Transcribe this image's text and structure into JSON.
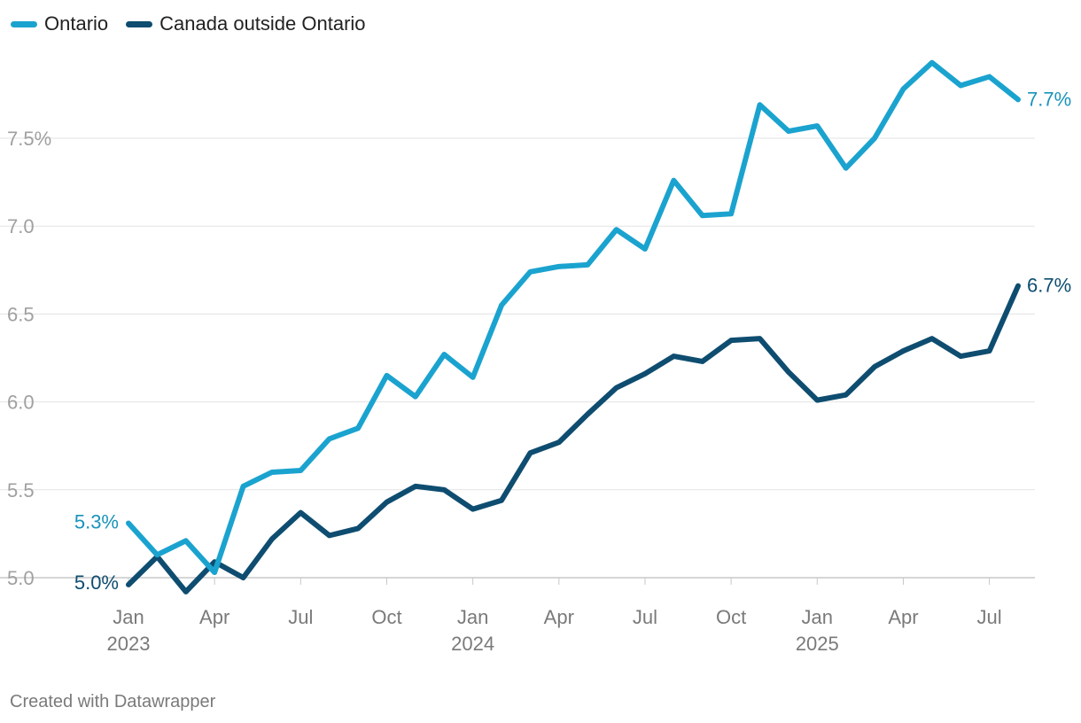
{
  "chart_data": {
    "type": "line",
    "title": "",
    "xlabel": "",
    "ylabel": "",
    "ylim": [
      4.9,
      8.0
    ],
    "yticks": [
      {
        "value": 5.0,
        "label": "5.0"
      },
      {
        "value": 5.5,
        "label": "5.5"
      },
      {
        "value": 6.0,
        "label": "6.0"
      },
      {
        "value": 6.5,
        "label": "6.5"
      },
      {
        "value": 7.0,
        "label": "7.0"
      },
      {
        "value": 7.5,
        "label": "7.5%"
      }
    ],
    "xticks": [
      {
        "index": 0,
        "label": "Jan",
        "year": "2023"
      },
      {
        "index": 3,
        "label": "Apr",
        "year": ""
      },
      {
        "index": 6,
        "label": "Jul",
        "year": ""
      },
      {
        "index": 9,
        "label": "Oct",
        "year": ""
      },
      {
        "index": 12,
        "label": "Jan",
        "year": "2024"
      },
      {
        "index": 15,
        "label": "Apr",
        "year": ""
      },
      {
        "index": 18,
        "label": "Jul",
        "year": ""
      },
      {
        "index": 21,
        "label": "Oct",
        "year": ""
      },
      {
        "index": 24,
        "label": "Jan",
        "year": "2025"
      },
      {
        "index": 27,
        "label": "Apr",
        "year": ""
      },
      {
        "index": 30,
        "label": "Jul",
        "year": ""
      }
    ],
    "x": [
      "Jan 2023",
      "Feb 2023",
      "Mar 2023",
      "Apr 2023",
      "May 2023",
      "Jun 2023",
      "Jul 2023",
      "Aug 2023",
      "Sep 2023",
      "Oct 2023",
      "Nov 2023",
      "Dec 2023",
      "Jan 2024",
      "Feb 2024",
      "Mar 2024",
      "Apr 2024",
      "May 2024",
      "Jun 2024",
      "Jul 2024",
      "Aug 2024",
      "Sep 2024",
      "Oct 2024",
      "Nov 2024",
      "Dec 2024",
      "Jan 2025",
      "Feb 2025",
      "Mar 2025",
      "Apr 2025",
      "May 2025",
      "Jun 2025",
      "Jul 2025",
      "Aug 2025"
    ],
    "series": [
      {
        "name": "Ontario",
        "color": "#1ba3cf",
        "label_color": "#1a93bb",
        "start_label": "5.3%",
        "end_label": "7.7%",
        "values": [
          5.31,
          5.13,
          5.21,
          5.03,
          5.52,
          5.6,
          5.61,
          5.79,
          5.85,
          6.15,
          6.03,
          6.27,
          6.14,
          6.55,
          6.74,
          6.77,
          6.78,
          6.98,
          6.87,
          7.26,
          7.06,
          7.07,
          7.69,
          7.54,
          7.57,
          7.33,
          7.5,
          7.78,
          7.93,
          7.8,
          7.85,
          7.72
        ]
      },
      {
        "name": "Canada outside Ontario",
        "color": "#0e4d70",
        "label_color": "#0e4d70",
        "start_label": "5.0%",
        "end_label": "6.7%",
        "values": [
          4.96,
          5.12,
          4.92,
          5.09,
          5.0,
          5.22,
          5.37,
          5.24,
          5.28,
          5.43,
          5.52,
          5.5,
          5.39,
          5.44,
          5.71,
          5.77,
          5.93,
          6.08,
          6.16,
          6.26,
          6.23,
          6.35,
          6.36,
          6.17,
          6.01,
          6.04,
          6.2,
          6.29,
          6.36,
          6.26,
          6.29,
          6.66
        ]
      }
    ]
  },
  "legend": {
    "items": [
      {
        "label": "Ontario",
        "color": "#1ba3cf"
      },
      {
        "label": "Canada outside Ontario",
        "color": "#0e4d70"
      }
    ]
  },
  "footer": {
    "credit": "Created with Datawrapper"
  }
}
